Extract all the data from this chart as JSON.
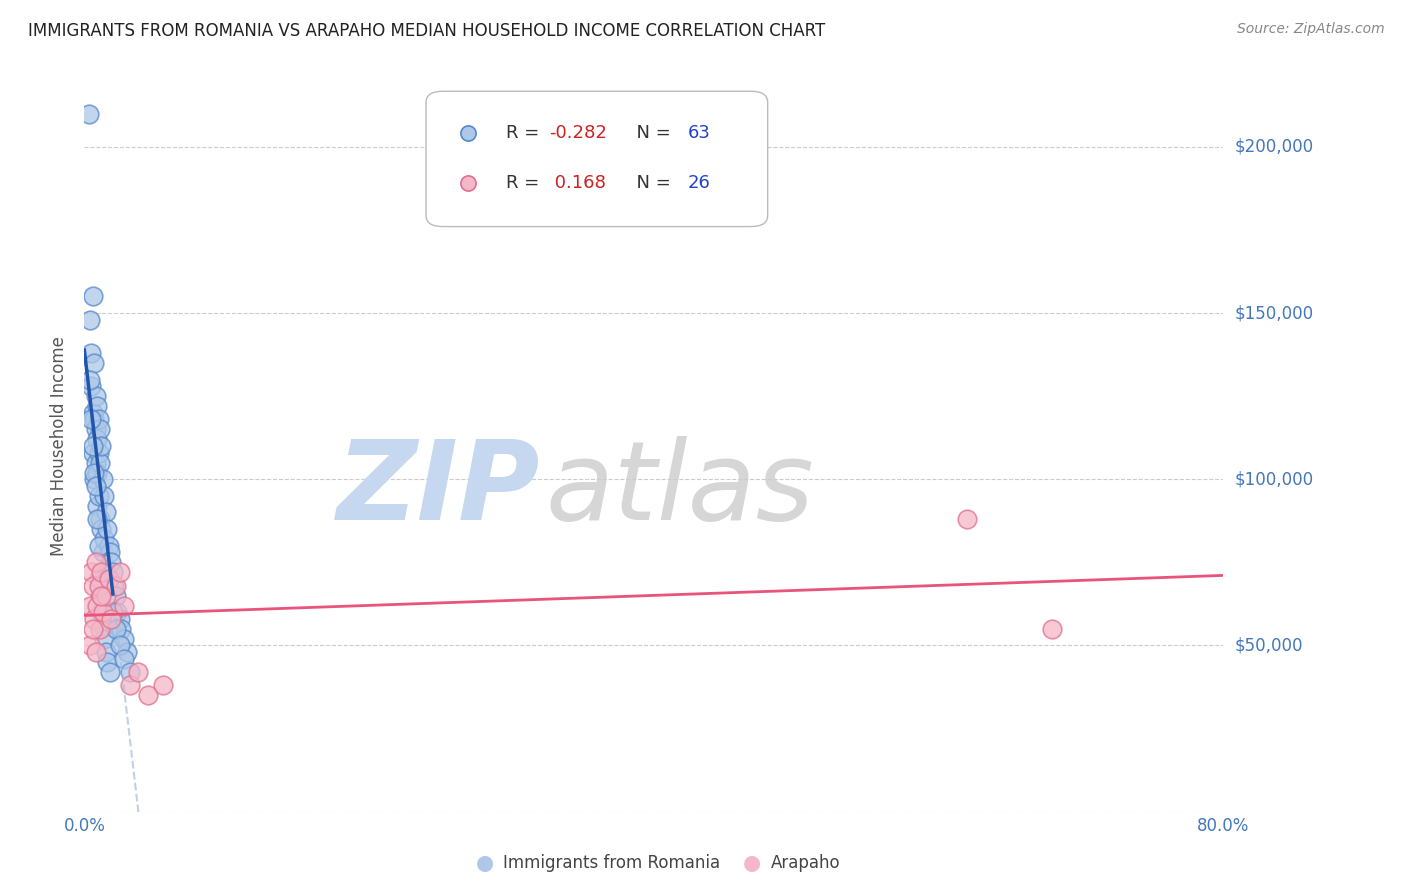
{
  "title": "IMMIGRANTS FROM ROMANIA VS ARAPAHO MEDIAN HOUSEHOLD INCOME CORRELATION CHART",
  "source": "Source: ZipAtlas.com",
  "ylabel": "Median Household Income",
  "y_ticks": [
    0,
    50000,
    100000,
    150000,
    200000
  ],
  "y_tick_labels": [
    "",
    "$50,000",
    "$100,000",
    "$150,000",
    "$200,000"
  ],
  "x_min": 0.0,
  "x_max": 0.8,
  "y_min": 0,
  "y_max": 220000,
  "blue_R": -0.282,
  "blue_N": 63,
  "pink_R": 0.168,
  "pink_N": 26,
  "blue_color": "#adc8e8",
  "blue_edge_color": "#5588cc",
  "pink_color": "#f5b8c8",
  "pink_edge_color": "#e07090",
  "blue_line_color": "#2255aa",
  "pink_line_color": "#e8547a",
  "blue_scatter_x": [
    0.003,
    0.004,
    0.005,
    0.005,
    0.006,
    0.006,
    0.006,
    0.007,
    0.007,
    0.007,
    0.008,
    0.008,
    0.008,
    0.009,
    0.009,
    0.009,
    0.009,
    0.01,
    0.01,
    0.01,
    0.011,
    0.011,
    0.011,
    0.012,
    0.012,
    0.013,
    0.013,
    0.014,
    0.014,
    0.015,
    0.015,
    0.016,
    0.017,
    0.018,
    0.019,
    0.02,
    0.021,
    0.022,
    0.023,
    0.025,
    0.026,
    0.028,
    0.03,
    0.004,
    0.005,
    0.006,
    0.007,
    0.008,
    0.009,
    0.01,
    0.01,
    0.011,
    0.012,
    0.013,
    0.014,
    0.015,
    0.016,
    0.018,
    0.02,
    0.022,
    0.025,
    0.028,
    0.032
  ],
  "blue_scatter_y": [
    210000,
    148000,
    138000,
    128000,
    155000,
    120000,
    108000,
    135000,
    118000,
    100000,
    125000,
    115000,
    105000,
    122000,
    112000,
    102000,
    92000,
    118000,
    108000,
    95000,
    115000,
    105000,
    88000,
    110000,
    85000,
    100000,
    78000,
    95000,
    82000,
    90000,
    72000,
    85000,
    80000,
    78000,
    75000,
    72000,
    68000,
    65000,
    60000,
    58000,
    55000,
    52000,
    48000,
    130000,
    118000,
    110000,
    102000,
    98000,
    88000,
    80000,
    70000,
    65000,
    60000,
    56000,
    52000,
    48000,
    45000,
    42000,
    60000,
    55000,
    50000,
    46000,
    42000
  ],
  "pink_scatter_x": [
    0.004,
    0.005,
    0.006,
    0.007,
    0.008,
    0.009,
    0.01,
    0.011,
    0.012,
    0.013,
    0.015,
    0.017,
    0.019,
    0.022,
    0.025,
    0.028,
    0.032,
    0.038,
    0.045,
    0.055,
    0.004,
    0.006,
    0.008,
    0.012,
    0.62,
    0.68
  ],
  "pink_scatter_y": [
    62000,
    72000,
    68000,
    58000,
    75000,
    62000,
    68000,
    55000,
    72000,
    60000,
    65000,
    70000,
    58000,
    68000,
    72000,
    62000,
    38000,
    42000,
    35000,
    38000,
    50000,
    55000,
    48000,
    65000,
    88000,
    55000
  ],
  "watermark_zip_color": "#c5d8f0",
  "watermark_atlas_color": "#cccccc",
  "legend_label_blue": "Immigrants from Romania",
  "legend_label_pink": "Arapaho",
  "background_color": "#ffffff",
  "title_color": "#222222",
  "tick_label_color": "#4477bb",
  "axis_label_color": "#555555",
  "source_color": "#888888",
  "legend_text_color": "#333333",
  "legend_R_blue_color": "#cc0000",
  "legend_R_pink_color": "#cc0000",
  "legend_N_blue_color": "#0055cc",
  "legend_N_pink_color": "#0055cc"
}
